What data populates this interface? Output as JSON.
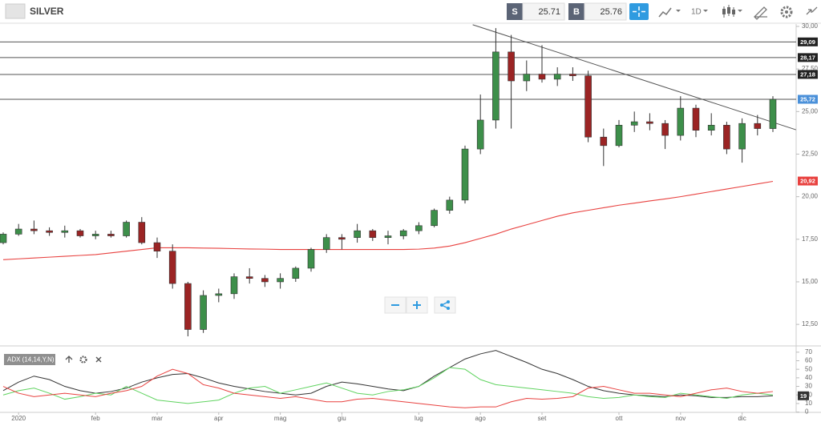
{
  "header": {
    "symbol": "SILVER",
    "sell_label": "S",
    "sell_price": "25.71",
    "buy_label": "B",
    "buy_price": "25.76",
    "timeframe": "1D"
  },
  "chart_data": [
    {
      "type": "candlestick",
      "categories": [
        null,
        "2020",
        null,
        null,
        null,
        null,
        "feb",
        null,
        null,
        null,
        "mar",
        null,
        null,
        null,
        "apr",
        null,
        null,
        null,
        "mag",
        null,
        null,
        null,
        "giu",
        null,
        null,
        null,
        null,
        "lug",
        null,
        null,
        null,
        "ago",
        null,
        null,
        null,
        "set",
        null,
        null,
        null,
        null,
        "ott",
        null,
        null,
        null,
        "nov",
        null,
        null,
        null,
        "dic",
        null,
        null
      ],
      "open": [
        17.3,
        17.8,
        18.1,
        18.0,
        17.9,
        18.0,
        17.7,
        17.8,
        17.7,
        18.5,
        17.3,
        16.8,
        14.9,
        12.2,
        14.2,
        14.3,
        15.3,
        15.2,
        15.0,
        15.2,
        15.8,
        16.9,
        17.6,
        17.6,
        18.0,
        17.6,
        17.7,
        18.0,
        18.3,
        19.2,
        19.8,
        22.8,
        24.5,
        28.5,
        26.8,
        27.2,
        26.9,
        27.2,
        27.1,
        23.5,
        23.0,
        24.2,
        24.4,
        24.3,
        23.6,
        25.2,
        23.9,
        24.2,
        22.8,
        24.3,
        24.0
      ],
      "high": [
        17.9,
        18.4,
        18.6,
        18.2,
        18.3,
        18.1,
        18.0,
        18.0,
        18.6,
        18.8,
        17.6,
        17.2,
        15.0,
        14.5,
        14.6,
        15.5,
        15.8,
        15.4,
        15.5,
        15.9,
        17.0,
        17.8,
        17.8,
        18.4,
        18.1,
        18.0,
        18.1,
        18.5,
        19.3,
        20.0,
        23.0,
        26.0,
        29.9,
        29.5,
        28.0,
        28.9,
        27.6,
        27.6,
        27.4,
        24.0,
        24.5,
        25.0,
        24.9,
        24.5,
        25.9,
        25.4,
        24.9,
        24.4,
        24.6,
        24.8,
        25.9
      ],
      "low": [
        17.2,
        17.7,
        17.8,
        17.7,
        17.6,
        17.6,
        17.5,
        17.6,
        17.6,
        17.2,
        16.4,
        14.6,
        11.8,
        12.0,
        13.8,
        14.0,
        14.9,
        14.7,
        14.6,
        15.0,
        15.6,
        16.7,
        16.9,
        17.3,
        17.4,
        17.2,
        17.5,
        17.8,
        18.2,
        19.0,
        19.6,
        22.5,
        24.0,
        24.0,
        26.2,
        26.7,
        26.5,
        26.8,
        23.2,
        21.8,
        22.9,
        23.8,
        23.9,
        22.8,
        23.3,
        23.5,
        23.6,
        22.5,
        22.0,
        23.6,
        23.8
      ],
      "close": [
        17.8,
        18.1,
        18.0,
        17.9,
        18.0,
        17.7,
        17.8,
        17.7,
        18.5,
        17.3,
        16.8,
        14.9,
        12.2,
        14.2,
        14.3,
        15.3,
        15.2,
        15.0,
        15.2,
        15.8,
        16.9,
        17.6,
        17.5,
        18.0,
        17.6,
        17.7,
        18.0,
        18.3,
        19.2,
        19.8,
        22.8,
        24.5,
        28.5,
        26.8,
        27.2,
        26.9,
        27.2,
        27.1,
        23.5,
        23.0,
        24.2,
        24.4,
        24.3,
        23.6,
        25.2,
        23.9,
        24.2,
        22.8,
        24.3,
        24.0,
        25.72
      ],
      "up_color": "#3d8f4a",
      "down_color": "#9b2424",
      "overlays": [
        {
          "color": "#e8413f",
          "values": [
            16.3,
            16.35,
            16.4,
            16.45,
            16.5,
            16.55,
            16.6,
            16.7,
            16.8,
            16.9,
            17.0,
            17.0,
            17.0,
            16.98,
            16.97,
            16.95,
            16.93,
            16.92,
            16.9,
            16.9,
            16.9,
            16.9,
            16.9,
            16.9,
            16.9,
            16.9,
            16.9,
            16.92,
            16.98,
            17.1,
            17.3,
            17.55,
            17.8,
            18.1,
            18.35,
            18.6,
            18.85,
            19.05,
            19.2,
            19.35,
            19.5,
            19.62,
            19.75,
            19.87,
            20.0,
            20.15,
            20.3,
            20.45,
            20.6,
            20.75,
            20.9
          ]
        }
      ],
      "ma_tag": {
        "value": 20.92,
        "label": "20,92"
      },
      "trendline": {
        "start": [
          30.5,
          30.1
        ],
        "end": [
          51.5,
          23.93
        ],
        "color": "#555555"
      },
      "levels": [
        {
          "value": 29.09,
          "label": "29,09",
          "color": "#222222"
        },
        {
          "value": 28.17,
          "label": "28,17",
          "color": "#222222"
        },
        {
          "value": 27.18,
          "label": "27,18",
          "color": "#222222"
        },
        {
          "value": 25.72,
          "label": "25,72",
          "color": "#4a90d9"
        }
      ],
      "ylim": [
        11.33,
        30.14
      ],
      "yticks": [
        {
          "value": 12.5,
          "label": "12,50"
        },
        {
          "value": 15,
          "label": "15,00"
        },
        {
          "value": 17.5,
          "label": "17,50"
        },
        {
          "value": 20,
          "label": "20,00"
        },
        {
          "value": 22.5,
          "label": "22,50"
        },
        {
          "value": 25,
          "label": "25,00"
        },
        {
          "value": 27.5,
          "label": "27,50"
        },
        {
          "value": 30,
          "label": "30,00"
        }
      ]
    },
    {
      "type": "line",
      "title": "ADX (14,14,Y,N)",
      "series": [
        {
          "color": "#333333",
          "values": [
            25,
            35,
            42,
            38,
            30,
            25,
            22,
            24,
            28,
            35,
            40,
            44,
            45,
            40,
            34,
            30,
            27,
            24,
            22,
            20,
            22,
            30,
            35,
            33,
            30,
            27,
            25,
            30,
            42,
            52,
            62,
            68,
            72,
            65,
            58,
            50,
            45,
            38,
            30,
            25,
            22,
            20,
            19,
            18,
            20,
            19,
            17,
            17,
            18,
            18,
            19
          ]
        },
        {
          "color": "#5fd35f",
          "values": [
            20,
            25,
            28,
            22,
            15,
            18,
            22,
            20,
            30,
            22,
            14,
            12,
            10,
            12,
            14,
            22,
            28,
            30,
            22,
            26,
            30,
            34,
            28,
            22,
            20,
            24,
            26,
            30,
            40,
            52,
            50,
            38,
            32,
            30,
            28,
            26,
            24,
            22,
            18,
            16,
            17,
            20,
            18,
            17,
            22,
            20,
            18,
            16,
            20,
            22,
            20
          ]
        },
        {
          "color": "#e8413f",
          "values": [
            30,
            22,
            18,
            20,
            22,
            20,
            18,
            22,
            25,
            30,
            42,
            50,
            45,
            32,
            28,
            22,
            20,
            18,
            16,
            18,
            15,
            12,
            12,
            15,
            16,
            14,
            12,
            10,
            8,
            6,
            5,
            6,
            6,
            12,
            16,
            15,
            16,
            18,
            28,
            30,
            26,
            22,
            22,
            20,
            18,
            22,
            26,
            28,
            24,
            22,
            24
          ]
        }
      ],
      "tag": 19,
      "ylim": [
        -0.4,
        74.5
      ],
      "yticks": [
        0,
        10,
        20,
        30,
        40,
        50,
        60,
        70
      ]
    }
  ]
}
